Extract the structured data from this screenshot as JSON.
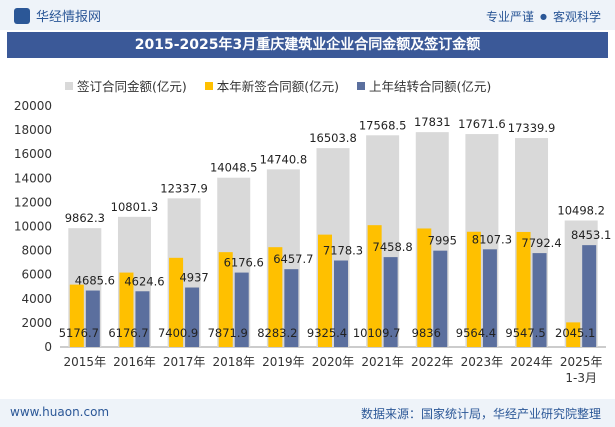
{
  "header": {
    "brand": "华经情报网",
    "tagline_1": "专业严谨",
    "tagline_sep": "●",
    "tagline_2": "客观科学"
  },
  "title": "2015-2025年3月重庆建筑业企业合同金额及签订金额",
  "footer": {
    "url": "www.huaon.com",
    "source": "数据来源：国家统计局，华经产业研究院整理"
  },
  "colors": {
    "signed": "#d9d9d9",
    "new": "#ffc000",
    "carry": "#5b6f9e",
    "title_bg": "#3b5998"
  },
  "chart_data": {
    "type": "bar",
    "categories": [
      "2015年",
      "2016年",
      "2017年",
      "2018年",
      "2019年",
      "2020年",
      "2021年",
      "2022年",
      "2023年",
      "2024年",
      "2025年"
    ],
    "category_sublabels": [
      "",
      "",
      "",
      "",
      "",
      "",
      "",
      "",
      "",
      "",
      "1-3月"
    ],
    "series": [
      {
        "name": "签订合同金额(亿元)",
        "values": [
          9862.3,
          10801.3,
          12337.9,
          14048.5,
          14740.8,
          16503.8,
          17568.5,
          17831,
          17671.6,
          17339.9,
          10498.2
        ]
      },
      {
        "name": "本年新签合同额(亿元)",
        "values": [
          5176.7,
          6176.7,
          7400.9,
          7871.9,
          8283.2,
          9325.4,
          10109.7,
          9836,
          9564.4,
          9547.5,
          2045.1
        ]
      },
      {
        "name": "上年结转合同额(亿元)",
        "values": [
          4685.6,
          4624.6,
          4937,
          6176.6,
          6457.7,
          7178.3,
          7458.8,
          7995,
          8107.3,
          7792.4,
          8453.1
        ]
      }
    ],
    "ylim": [
      0,
      20000
    ],
    "yticks": [
      0,
      2000,
      4000,
      6000,
      8000,
      10000,
      12000,
      14000,
      16000,
      18000,
      20000
    ],
    "title": "2015-2025年3月重庆建筑业企业合同金额及签订金额",
    "xlabel": "",
    "ylabel": ""
  }
}
